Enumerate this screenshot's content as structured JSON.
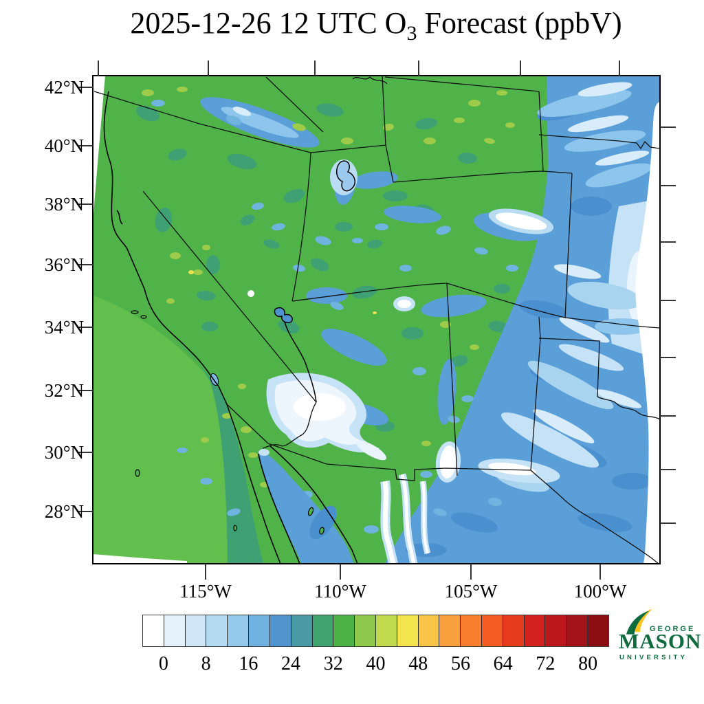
{
  "title": {
    "prefix": "2025-12-26 12 UTC O",
    "subscript": "3",
    "suffix": " Forecast (ppbV)"
  },
  "map": {
    "lat_labels": [
      "42°N",
      "40°N",
      "38°N",
      "36°N",
      "34°N",
      "32°N",
      "30°N",
      "28°N"
    ],
    "lon_labels": [
      "115°W",
      "110°W",
      "105°W",
      "100°W"
    ]
  },
  "colorbar": {
    "tick_labels": [
      "0",
      "8",
      "16",
      "24",
      "32",
      "40",
      "48",
      "56",
      "64",
      "72",
      "80"
    ],
    "value_step_per_cell": 4,
    "colors": [
      "#ffffff",
      "#e6f2fb",
      "#d0e7f7",
      "#b5dbf3",
      "#95c9ec",
      "#72b2e0",
      "#4f93cf",
      "#4a9aa6",
      "#40a471",
      "#4cb248",
      "#8dc84a",
      "#c2da4e",
      "#f3e44e",
      "#f8c647",
      "#f9a03e",
      "#f97e2e",
      "#f35d23",
      "#e73b1e",
      "#d3211f",
      "#bc181c",
      "#a4121a",
      "#8c0d12"
    ]
  },
  "map_colors": {
    "land_base_green": "#4fb34a",
    "offshore_light_green": "#63bf4d",
    "coastal_teal": "#3fa173",
    "plains_blue": "#5b9fd8",
    "light_blue": "#8ec5ec",
    "pale_blue": "#d9ecfa",
    "boundary_black": "#111111",
    "no_data_white": "#ffffff"
  },
  "logo": {
    "line1": "GEORGE",
    "line2": "MASON",
    "line3": "UNIVERSITY",
    "green": "#0e6b3e",
    "gold": "#ffc423"
  }
}
